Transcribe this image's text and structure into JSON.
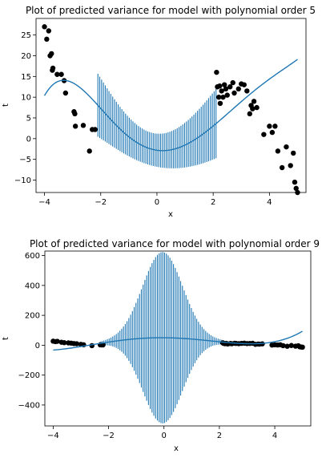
{
  "colors": {
    "mean": "#1f77b4",
    "errorbar": "#1f77b4",
    "points": "#000000"
  },
  "chart_data": [
    {
      "type": "errorbar",
      "title": "Plot of predicted variance for model with polynomial order 5",
      "xlabel": "x",
      "ylabel": "t",
      "xlim": [
        -4.3,
        5.3
      ],
      "ylim": [
        -13,
        29
      ],
      "xticks": [
        -4,
        -2,
        0,
        2,
        4
      ],
      "yticks": [
        -10,
        -5,
        0,
        5,
        10,
        15,
        20,
        25
      ],
      "grid": false,
      "poly_coeffs": [
        -2.8,
        -0.94,
        2.34,
        -0.07,
        -0.087,
        0.01
      ],
      "var_coeffs": [
        4.0,
        0.4,
        1.1,
        -0.05,
        -0.045
      ],
      "mean_range": [
        -4.0,
        5.0
      ],
      "errorbar_range": [
        -2.1,
        2.1
      ],
      "errorbar_count": 65,
      "points_x": [
        -4.0,
        -3.92,
        -3.85,
        -3.8,
        -3.75,
        -3.72,
        -3.7,
        -3.55,
        -3.4,
        -3.3,
        -3.25,
        -2.95,
        -2.92,
        -2.9,
        -2.62,
        -2.4,
        -2.3,
        -2.2,
        2.12,
        2.15,
        2.2,
        2.23,
        2.25,
        2.3,
        2.35,
        2.4,
        2.45,
        2.5,
        2.6,
        2.7,
        2.75,
        2.9,
        3.0,
        3.1,
        3.2,
        3.3,
        3.35,
        3.4,
        3.45,
        3.55,
        3.8,
        4.0,
        4.1,
        4.2,
        4.3,
        4.45,
        4.6,
        4.75,
        4.85,
        4.9,
        4.95,
        5.0
      ],
      "points_y": [
        27,
        24,
        26,
        20,
        20.5,
        16.5,
        17,
        15.5,
        15.5,
        14,
        11,
        6.5,
        6,
        3,
        3.2,
        -3,
        2.2,
        2.2,
        16,
        12.5,
        10,
        12.7,
        8.5,
        11.5,
        10,
        13,
        12,
        10.5,
        12.5,
        13.5,
        11,
        12,
        13.2,
        13,
        11.5,
        6,
        8,
        7.2,
        9,
        7.5,
        1,
        3,
        1.5,
        3,
        -3,
        -7,
        -2,
        -6.5,
        -3.5,
        -10.5,
        -12,
        -13
      ]
    },
    {
      "type": "errorbar",
      "title": "Plot of predicted variance for model with polynomial order 9",
      "xlabel": "x",
      "ylabel": "t",
      "xlim": [
        -4.3,
        5.3
      ],
      "ylim": [
        -540,
        630
      ],
      "xticks": [
        -4,
        -2,
        0,
        2,
        4
      ],
      "yticks": [
        -400,
        -200,
        0,
        200,
        400,
        600
      ],
      "grid": false,
      "poly_coeffs": [
        50,
        -1.5,
        -8.2,
        0.5,
        0.3,
        0.002
      ],
      "var_gauss": {
        "amp": 565,
        "center": -0.05,
        "sigma": 0.72,
        "base": 8
      },
      "mean_range": [
        -4.0,
        5.0
      ],
      "errorbar_range": [
        -2.3,
        2.15
      ],
      "errorbar_count": 70,
      "points_x": [
        -4.0,
        -3.92,
        -3.85,
        -3.7,
        -3.6,
        -3.45,
        -3.35,
        -3.25,
        -3.15,
        -3.0,
        -2.9,
        -2.6,
        -2.3,
        -2.25,
        -2.2,
        2.12,
        2.15,
        2.2,
        2.25,
        2.3,
        2.4,
        2.45,
        2.55,
        2.6,
        2.7,
        2.8,
        2.9,
        3.0,
        3.1,
        3.2,
        3.3,
        3.4,
        3.45,
        3.55,
        3.9,
        4.0,
        4.1,
        4.2,
        4.3,
        4.45,
        4.6,
        4.75,
        4.85,
        4.9,
        4.95,
        5.0
      ],
      "points_y": [
        27,
        24,
        26,
        20,
        17,
        15.5,
        14,
        11,
        10,
        6,
        3,
        -3,
        2.2,
        2,
        2,
        16,
        12.5,
        10,
        12.7,
        8.5,
        11.5,
        10,
        13,
        12,
        10.5,
        12.5,
        13.5,
        11,
        12,
        13,
        6,
        8,
        7.2,
        9,
        1,
        3,
        1.5,
        3,
        -3,
        -7,
        -2,
        -6.5,
        -3.5,
        -10.5,
        -12,
        -13
      ]
    }
  ]
}
